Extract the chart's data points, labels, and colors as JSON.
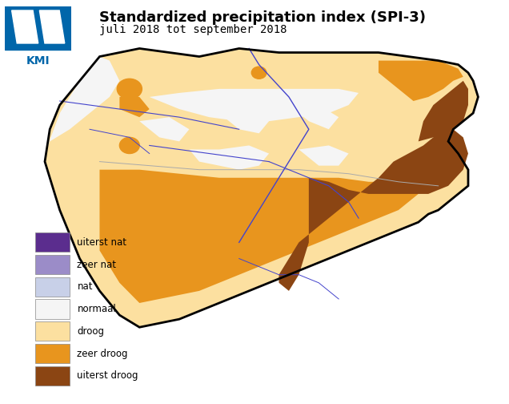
{
  "title": "Standardized precipitation index (SPI-3)",
  "subtitle": "juli 2018 tot september 2018",
  "title_fontsize": 13,
  "subtitle_fontsize": 10,
  "legend_labels": [
    "uiterst nat",
    "zeer nat",
    "nat",
    "normaal",
    "droog",
    "zeer droog",
    "uiterst droog"
  ],
  "legend_colors": [
    "#5b2d8e",
    "#9b8cc8",
    "#c8d0e8",
    "#f5f5f5",
    "#fce0a0",
    "#e8951e",
    "#8b4513"
  ],
  "background_color": "#ffffff",
  "map_background": "#ffffff",
  "border_color": "#000000",
  "river_color": "#4444cc",
  "subregion_border_color": "#aaaaaa",
  "kmi_blue": "#0066aa"
}
